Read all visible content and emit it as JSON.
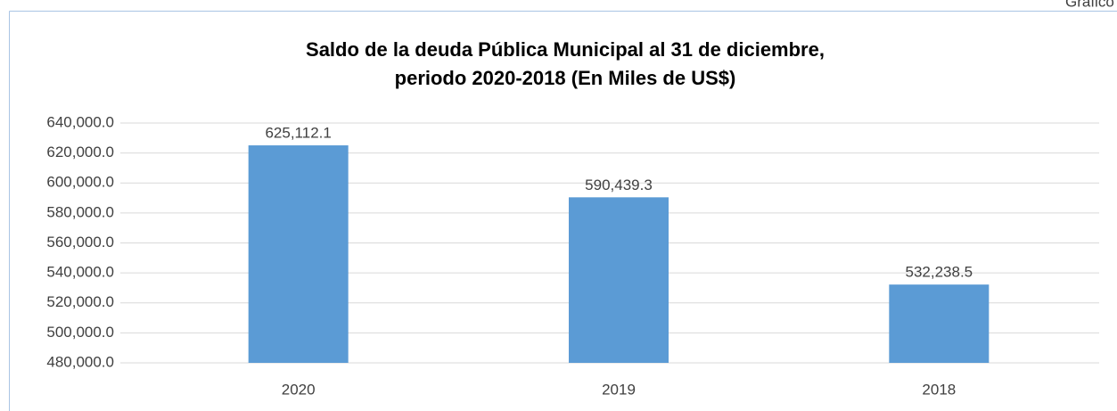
{
  "chart_data": {
    "type": "bar",
    "annotation": "Gráfico",
    "title": [
      "Saldo de la deuda Pública Municipal al 31 de diciembre,",
      "periodo 2020-2018 (En Miles de US$)"
    ],
    "categories": [
      "2020",
      "2019",
      "2018"
    ],
    "values": [
      625112.1,
      590439.3,
      532238.5
    ],
    "value_labels": [
      "625,112.1",
      "590,439.3",
      "532,238.5"
    ],
    "color": "#5b9bd5",
    "ylim": [
      480000,
      640000
    ],
    "yticks": [
      {
        "value": 480000,
        "label": "480,000.0"
      },
      {
        "value": 500000,
        "label": "500,000.0"
      },
      {
        "value": 520000,
        "label": "520,000.0"
      },
      {
        "value": 540000,
        "label": "540,000.0"
      },
      {
        "value": 560000,
        "label": "560,000.0"
      },
      {
        "value": 580000,
        "label": "580,000.0"
      },
      {
        "value": 600000,
        "label": "600,000.0"
      },
      {
        "value": 620000,
        "label": "620,000.0"
      },
      {
        "value": 640000,
        "label": "640,000.0"
      }
    ],
    "grid": true
  }
}
